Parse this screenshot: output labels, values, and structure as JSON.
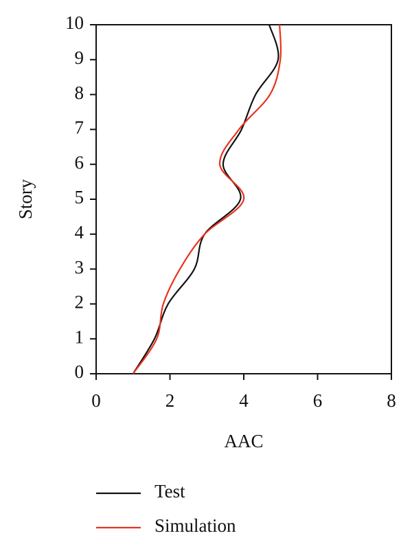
{
  "chart_data": {
    "type": "line",
    "x_label": "AAC",
    "y_label": "Story",
    "y": [
      0,
      1,
      2,
      3,
      4,
      5,
      6,
      7,
      8,
      9,
      10
    ],
    "series": [
      {
        "name": "Test",
        "color": "#111111",
        "values": [
          1.0,
          1.58,
          1.95,
          2.66,
          2.94,
          3.91,
          3.44,
          3.94,
          4.32,
          4.93,
          4.69
        ]
      },
      {
        "name": "Simulation",
        "color": "#e8321e",
        "values": [
          1.0,
          1.64,
          1.82,
          2.27,
          2.94,
          4.0,
          3.35,
          3.87,
          4.71,
          4.99,
          4.97
        ]
      }
    ],
    "xlim": [
      0,
      8
    ],
    "xticks": [
      0,
      2,
      4,
      6,
      8
    ],
    "ylim": [
      0,
      10
    ],
    "yticks": [
      0,
      1,
      2,
      3,
      4,
      5,
      6,
      7,
      8,
      9,
      10
    ],
    "grid": false,
    "legend": "bottom"
  }
}
